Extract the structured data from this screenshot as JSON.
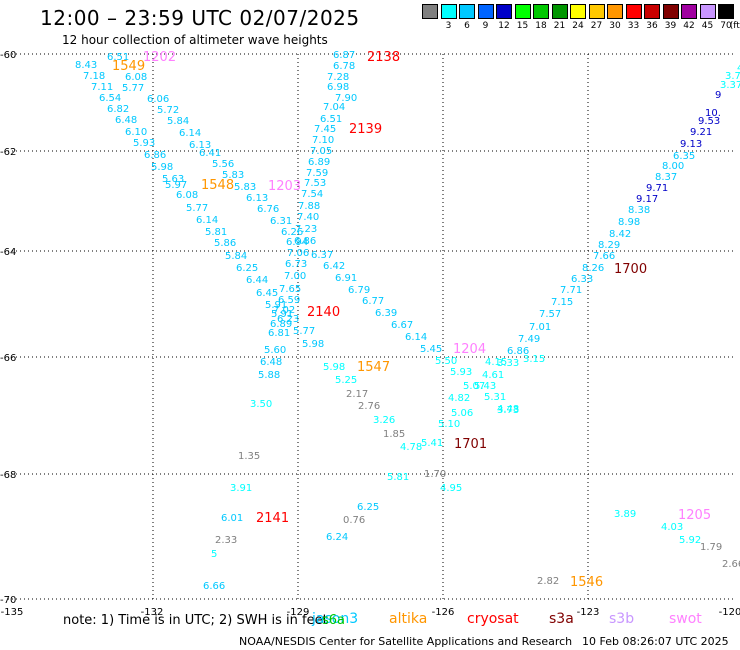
{
  "header": {
    "title": "12:00 – 23:59 UTC 02/07/2025",
    "subtitle": "12 hour collection of altimeter wave heights"
  },
  "color_scale": {
    "unit_label": "(ft)",
    "bins": [
      {
        "label": "",
        "color": "#808080"
      },
      {
        "label": "3",
        "color": "#00ffff"
      },
      {
        "label": "6",
        "color": "#00c8ff"
      },
      {
        "label": "9",
        "color": "#0064ff"
      },
      {
        "label": "12",
        "color": "#0000c8"
      },
      {
        "label": "15",
        "color": "#00ff00"
      },
      {
        "label": "18",
        "color": "#00c800"
      },
      {
        "label": "21",
        "color": "#009600"
      },
      {
        "label": "24",
        "color": "#ffff00"
      },
      {
        "label": "27",
        "color": "#ffc800"
      },
      {
        "label": "30",
        "color": "#ff9600"
      },
      {
        "label": "33",
        "color": "#ff0000"
      },
      {
        "label": "36",
        "color": "#c80000"
      },
      {
        "label": "39",
        "color": "#800000"
      },
      {
        "label": "42",
        "color": "#a000a0"
      },
      {
        "label": "45",
        "color": "#c896ff"
      },
      {
        "label": "70",
        "color": "#000000"
      }
    ]
  },
  "map": {
    "lon_labels": [
      "-135",
      "-132",
      "-129",
      "-126",
      "-123",
      "-120"
    ],
    "lat_labels": [
      "-60",
      "-62",
      "-64",
      "-66",
      "-68",
      "-70"
    ],
    "satellites": {
      "jason3": {
        "color": "#00c8ff"
      },
      "altika": {
        "color": "#ff9600"
      },
      "cryosat": {
        "color": "#ff0000"
      },
      "s3a": {
        "color": "#800000"
      },
      "s3b": {
        "color": "#c896ff"
      },
      "swot": {
        "color": "#ff80ff"
      },
      "sentinel6": {
        "color": "#808080"
      }
    },
    "observations": [
      {
        "text": "6.51",
        "c": "#00c8ff"
      },
      {
        "text": "8.43",
        "c": "#00c8ff"
      },
      {
        "text": "7.18",
        "c": "#00c8ff"
      },
      {
        "text": "7.11",
        "c": "#00c8ff"
      },
      {
        "text": "6.54",
        "c": "#00c8ff"
      },
      {
        "text": "6.82",
        "c": "#00c8ff"
      },
      {
        "text": "6.48",
        "c": "#00c8ff"
      },
      {
        "text": "6.10",
        "c": "#00c8ff"
      },
      {
        "text": "5.93",
        "c": "#00c8ff"
      },
      {
        "text": "6.86",
        "c": "#00c8ff"
      },
      {
        "text": "5.98",
        "c": "#00c8ff"
      },
      {
        "text": "5.63",
        "c": "#00c8ff"
      },
      {
        "text": "5.97",
        "c": "#00c8ff"
      },
      {
        "text": "6.08",
        "c": "#00c8ff"
      },
      {
        "text": "5.77",
        "c": "#00c8ff"
      },
      {
        "text": "6.14",
        "c": "#00c8ff"
      },
      {
        "text": "5.81",
        "c": "#00c8ff"
      },
      {
        "text": "5.86",
        "c": "#00c8ff"
      },
      {
        "text": "5.84",
        "c": "#00c8ff"
      },
      {
        "text": "6.25",
        "c": "#00c8ff"
      },
      {
        "text": "6.44",
        "c": "#00c8ff"
      },
      {
        "text": "6.45",
        "c": "#00c8ff"
      },
      {
        "text": "5.91",
        "c": "#00c8ff"
      },
      {
        "text": "5.91",
        "c": "#00c8ff"
      },
      {
        "text": "6.89",
        "c": "#00c8ff"
      },
      {
        "text": "6.81",
        "c": "#00c8ff"
      },
      {
        "text": "5.60",
        "c": "#00c8ff"
      },
      {
        "text": "6.48",
        "c": "#00c8ff"
      },
      {
        "text": "5.88",
        "c": "#00c8ff"
      },
      {
        "text": "6.08",
        "c": "#00c8ff"
      },
      {
        "text": "5.77",
        "c": "#00c8ff"
      },
      {
        "text": "6.06",
        "c": "#00c8ff"
      },
      {
        "text": "5.72",
        "c": "#00c8ff"
      },
      {
        "text": "5.84",
        "c": "#00c8ff"
      },
      {
        "text": "6.14",
        "c": "#00c8ff"
      },
      {
        "text": "6.13",
        "c": "#00c8ff"
      },
      {
        "text": "6.41",
        "c": "#00c8ff"
      },
      {
        "text": "5.56",
        "c": "#00c8ff"
      },
      {
        "text": "5.83",
        "c": "#00c8ff"
      },
      {
        "text": "5.83",
        "c": "#00c8ff"
      },
      {
        "text": "6.13",
        "c": "#00c8ff"
      },
      {
        "text": "6.76",
        "c": "#00c8ff"
      },
      {
        "text": "6.31",
        "c": "#00c8ff"
      },
      {
        "text": "6.26",
        "c": "#00c8ff"
      },
      {
        "text": "6.94",
        "c": "#00c8ff"
      },
      {
        "text": "7.06",
        "c": "#00c8ff"
      },
      {
        "text": "6.73",
        "c": "#00c8ff"
      },
      {
        "text": "7.00",
        "c": "#00c8ff"
      },
      {
        "text": "7.65",
        "c": "#00c8ff"
      },
      {
        "text": "6.59",
        "c": "#00c8ff"
      },
      {
        "text": "7.02",
        "c": "#00c8ff"
      },
      {
        "text": "6.23",
        "c": "#00c8ff"
      },
      {
        "text": "5.77",
        "c": "#00c8ff"
      },
      {
        "text": "5.98",
        "c": "#00c8ff"
      },
      {
        "text": "6.87",
        "c": "#00c8ff"
      },
      {
        "text": "6.78",
        "c": "#00c8ff"
      },
      {
        "text": "7.28",
        "c": "#00c8ff"
      },
      {
        "text": "6.98",
        "c": "#00c8ff"
      },
      {
        "text": "7.90",
        "c": "#00c8ff"
      },
      {
        "text": "7.04",
        "c": "#00c8ff"
      },
      {
        "text": "6.51",
        "c": "#00c8ff"
      },
      {
        "text": "7.45",
        "c": "#00c8ff"
      },
      {
        "text": "7.10",
        "c": "#00c8ff"
      },
      {
        "text": "7.05",
        "c": "#00c8ff"
      },
      {
        "text": "6.89",
        "c": "#00c8ff"
      },
      {
        "text": "7.59",
        "c": "#00c8ff"
      },
      {
        "text": "7.53",
        "c": "#00c8ff"
      },
      {
        "text": "7.54",
        "c": "#00c8ff"
      },
      {
        "text": "7.88",
        "c": "#00c8ff"
      },
      {
        "text": "7.40",
        "c": "#00c8ff"
      },
      {
        "text": "7.23",
        "c": "#00c8ff"
      },
      {
        "text": "6.86",
        "c": "#00c8ff"
      },
      {
        "text": "6.37",
        "c": "#00c8ff"
      },
      {
        "text": "6.42",
        "c": "#00c8ff"
      },
      {
        "text": "6.91",
        "c": "#00c8ff"
      },
      {
        "text": "6.79",
        "c": "#00c8ff"
      },
      {
        "text": "6.77",
        "c": "#00c8ff"
      },
      {
        "text": "6.39",
        "c": "#00c8ff"
      },
      {
        "text": "6.67",
        "c": "#00c8ff"
      },
      {
        "text": "6.14",
        "c": "#00c8ff"
      },
      {
        "text": "5.45",
        "c": "#00c8ff"
      },
      {
        "text": "5.50",
        "c": "#00ffff"
      },
      {
        "text": "5.98",
        "c": "#00ffff"
      },
      {
        "text": "5.25",
        "c": "#00ffff"
      },
      {
        "text": "3.50",
        "c": "#00ffff"
      },
      {
        "text": "3.26",
        "c": "#00ffff"
      },
      {
        "text": "4.78",
        "c": "#00ffff"
      },
      {
        "text": "5.41",
        "c": "#00ffff"
      },
      {
        "text": "5.10",
        "c": "#00ffff"
      },
      {
        "text": "5.06",
        "c": "#00ffff"
      },
      {
        "text": "4.82",
        "c": "#00ffff"
      },
      {
        "text": "5.07",
        "c": "#00ffff"
      },
      {
        "text": "5.43",
        "c": "#00ffff"
      },
      {
        "text": "5.93",
        "c": "#00ffff"
      },
      {
        "text": "4.61",
        "c": "#00ffff"
      },
      {
        "text": "5.31",
        "c": "#00ffff"
      },
      {
        "text": "4.15",
        "c": "#00ffff"
      },
      {
        "text": "3.73",
        "c": "#00ffff"
      },
      {
        "text": "3.33",
        "c": "#00ffff"
      },
      {
        "text": "3.15",
        "c": "#00ffff"
      },
      {
        "text": "4.48",
        "c": "#00ffff"
      },
      {
        "text": "5.81",
        "c": "#00ffff"
      },
      {
        "text": "4.95",
        "c": "#00ffff"
      },
      {
        "text": "3.91",
        "c": "#00ffff"
      },
      {
        "text": "6.01",
        "c": "#00c8ff"
      },
      {
        "text": "6.25",
        "c": "#00c8ff"
      },
      {
        "text": "6.24",
        "c": "#00c8ff"
      },
      {
        "text": "6.66",
        "c": "#00c8ff"
      },
      {
        "text": "6.86",
        "c": "#00c8ff"
      },
      {
        "text": "7.49",
        "c": "#00c8ff"
      },
      {
        "text": "7.01",
        "c": "#00c8ff"
      },
      {
        "text": "7.57",
        "c": "#00c8ff"
      },
      {
        "text": "7.15",
        "c": "#00c8ff"
      },
      {
        "text": "7.71",
        "c": "#00c8ff"
      },
      {
        "text": "6.33",
        "c": "#00c8ff"
      },
      {
        "text": "8.26",
        "c": "#00c8ff"
      },
      {
        "text": "7.66",
        "c": "#00c8ff"
      },
      {
        "text": "8.29",
        "c": "#00c8ff"
      },
      {
        "text": "8.42",
        "c": "#00c8ff"
      },
      {
        "text": "8.98",
        "c": "#00c8ff"
      },
      {
        "text": "8.38",
        "c": "#00c8ff"
      },
      {
        "text": "9.17",
        "c": "#0000c8"
      },
      {
        "text": "9.71",
        "c": "#0000c8"
      },
      {
        "text": "8.37",
        "c": "#00c8ff"
      },
      {
        "text": "8.00",
        "c": "#00c8ff"
      },
      {
        "text": "6.35",
        "c": "#00c8ff"
      },
      {
        "text": "9.13",
        "c": "#0000c8"
      },
      {
        "text": "9.21",
        "c": "#0000c8"
      },
      {
        "text": "9.53",
        "c": "#0000c8"
      },
      {
        "text": "10.",
        "c": "#0000c8"
      },
      {
        "text": "9",
        "c": "#0000c8"
      },
      {
        "text": "3.37",
        "c": "#00ffff"
      },
      {
        "text": "3.70",
        "c": "#00ffff"
      },
      {
        "text": "4.88",
        "c": "#00ffff"
      },
      {
        "text": "3.89",
        "c": "#00ffff"
      },
      {
        "text": "4.03",
        "c": "#00ffff"
      },
      {
        "text": "5.92",
        "c": "#00ffff"
      },
      {
        "text": "1.79",
        "c": "#808080"
      },
      {
        "text": "2.66",
        "c": "#808080"
      },
      {
        "text": "2.82",
        "c": "#808080"
      },
      {
        "text": "2.17",
        "c": "#808080"
      },
      {
        "text": "2.76",
        "c": "#808080"
      },
      {
        "text": "1.85",
        "c": "#808080"
      },
      {
        "text": "1.70",
        "c": "#808080"
      },
      {
        "text": "1.35",
        "c": "#808080"
      },
      {
        "text": "0.76",
        "c": "#808080"
      },
      {
        "text": "2.33",
        "c": "#808080"
      },
      {
        "text": "5",
        "c": "#00ffff"
      }
    ],
    "pass_times": [
      {
        "text": "1202",
        "c": "#ff80ff"
      },
      {
        "text": "1549",
        "c": "#ff9600"
      },
      {
        "text": "1548",
        "c": "#ff9600"
      },
      {
        "text": "1203",
        "c": "#ff80ff"
      },
      {
        "text": "2138",
        "c": "#ff0000"
      },
      {
        "text": "2139",
        "c": "#ff0000"
      },
      {
        "text": "2140",
        "c": "#ff0000"
      },
      {
        "text": "1547",
        "c": "#ff9600"
      },
      {
        "text": "1204",
        "c": "#ff80ff"
      },
      {
        "text": "1701",
        "c": "#800000"
      },
      {
        "text": "1700",
        "c": "#800000"
      },
      {
        "text": "2141",
        "c": "#ff0000"
      },
      {
        "text": "1205",
        "c": "#ff80ff"
      },
      {
        "text": "1546",
        "c": "#ff9600"
      }
    ]
  },
  "footer": {
    "note": "note:  1) Time is in UTC;  2) SWH is in feet",
    "sat_labels": {
      "jason3": "jason3",
      "sentinel6": "s6a",
      "altika": "altika",
      "cryosat": "cryosat",
      "s3a": "s3a",
      "s3b": "s3b",
      "swot": "swot"
    },
    "credit": "NOAA/NESDIS Center for Satellite Applications and Research",
    "timestamp": "10 Feb 08:26:07 UTC 2025"
  }
}
